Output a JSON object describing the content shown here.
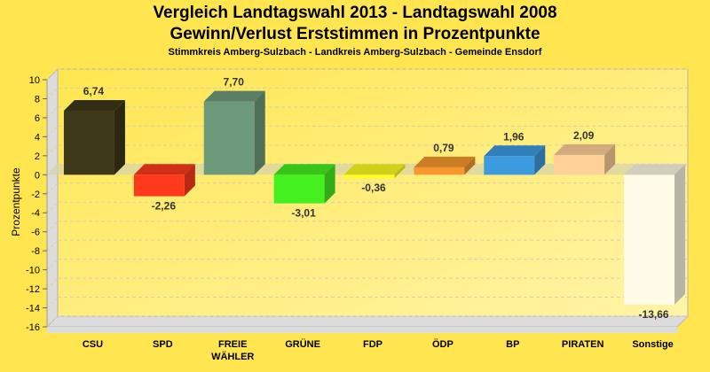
{
  "header": {
    "title_line1": "Vergleich Landtagswahl 2013 - Landtagswahl 2008",
    "title_line2": "Gewinn/Verlust Erststimmen in Prozentpunkte",
    "subtitle": "Stimmkreis Amberg-Sulzbach - Landkreis Amberg-Sulzbach - Gemeinde Ensdorf"
  },
  "chart_data": {
    "type": "bar",
    "title": "Vergleich Landtagswahl 2013 - Landtagswahl 2008 / Gewinn/Verlust Erststimmen in Prozentpunkte",
    "subtitle": "Stimmkreis Amberg-Sulzbach - Landkreis Amberg-Sulzbach - Gemeinde Ensdorf",
    "xlabel": "",
    "ylabel": "Prozentpunkte",
    "ylim": [
      -16,
      10
    ],
    "yticks": [
      10,
      8,
      6,
      4,
      2,
      0,
      -2,
      -4,
      -6,
      -8,
      -10,
      -12,
      -14,
      -16
    ],
    "grid": true,
    "legend": "none",
    "categories": [
      "CSU",
      "SPD",
      "FREIE WÄHLER",
      "GRÜNE",
      "FDP",
      "ÖDP",
      "BP",
      "PIRATEN",
      "Sonstige"
    ],
    "category_lines": [
      [
        "CSU"
      ],
      [
        "SPD"
      ],
      [
        "FREIE",
        "WÄHLER"
      ],
      [
        "GRÜNE"
      ],
      [
        "FDP"
      ],
      [
        "ÖDP"
      ],
      [
        "BP"
      ],
      [
        "PIRATEN"
      ],
      [
        "Sonstige"
      ]
    ],
    "values": [
      6.74,
      -2.26,
      7.7,
      -3.01,
      -0.36,
      0.79,
      1.96,
      2.09,
      -13.66
    ],
    "value_labels": [
      "6,74",
      "-2,26",
      "7,70",
      "-3,01",
      "-0,36",
      "0,79",
      "1,96",
      "2,09",
      "-13,66"
    ],
    "colors": [
      "#3c3818",
      "#ff3a1c",
      "#6e9a7c",
      "#44f020",
      "#ffff20",
      "#f8982c",
      "#3c9ae0",
      "#ffd098",
      "#fffbe6"
    ]
  }
}
